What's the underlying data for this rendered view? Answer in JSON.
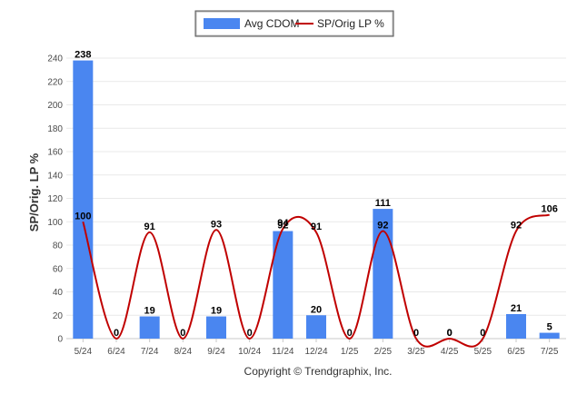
{
  "chart_data": {
    "type": "bar",
    "categories": [
      "5/24",
      "6/24",
      "7/24",
      "8/24",
      "9/24",
      "10/24",
      "11/24",
      "12/24",
      "1/25",
      "2/25",
      "3/25",
      "4/25",
      "5/25",
      "6/25",
      "7/25"
    ],
    "series": [
      {
        "name": "Avg CDOM",
        "type": "bar",
        "color": "#4a86f0",
        "values": [
          238,
          0,
          19,
          0,
          19,
          0,
          92,
          20,
          0,
          111,
          0,
          0,
          0,
          21,
          5
        ],
        "labels": [
          "238",
          "0",
          "19",
          "0",
          "19",
          "0",
          "92",
          "20",
          "0",
          "111",
          "0",
          "0",
          "0",
          "21",
          "5"
        ]
      },
      {
        "name": "SP/Orig LP %",
        "type": "line",
        "color": "#c00000",
        "values": [
          100,
          0,
          91,
          0,
          93,
          0,
          94,
          91,
          0,
          92,
          0,
          0,
          0,
          92,
          106
        ],
        "labels": [
          "100",
          "",
          "91",
          "",
          "93",
          "",
          "94",
          "91",
          "",
          "92",
          "",
          "0",
          "",
          "92",
          "106"
        ]
      }
    ],
    "yticks": [
      "0",
      "20",
      "40",
      "60",
      "80",
      "100",
      "120",
      "140",
      "160",
      "180",
      "200",
      "220",
      "240"
    ],
    "ylim": [
      0,
      240
    ],
    "ylabel": "SP/Orig. LP %",
    "legend_position": "top-center",
    "grid": true
  },
  "footer": {
    "copyright": "Copyright © Trendgraphix, Inc."
  }
}
